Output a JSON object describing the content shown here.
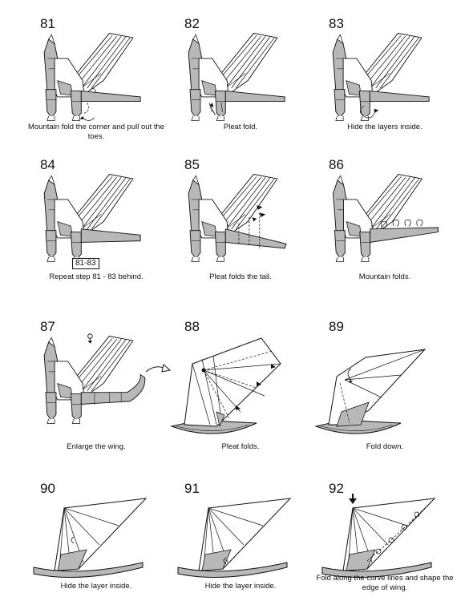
{
  "steps": [
    {
      "number": "81",
      "caption": "Mountain fold the corner and pull out the toes."
    },
    {
      "number": "82",
      "caption": "Pleat fold."
    },
    {
      "number": "83",
      "caption": "Hide the layers inside."
    },
    {
      "number": "84",
      "caption": "Repeat step 81 - 83 behind.",
      "ref": "81-83"
    },
    {
      "number": "85",
      "caption": "Pleat folds the tail."
    },
    {
      "number": "86",
      "caption": "Mountain folds."
    },
    {
      "number": "87",
      "caption": "Enlarge the wing."
    },
    {
      "number": "88",
      "caption": "Pleat folds."
    },
    {
      "number": "89",
      "caption": "Fold down."
    },
    {
      "number": "90",
      "caption": "Hide the layer inside."
    },
    {
      "number": "91",
      "caption": "Hide the layer inside."
    },
    {
      "number": "92",
      "caption": "Fold along the curve lines and shape the edge of wing."
    }
  ],
  "colors": {
    "paper_back": "#b8b8b8",
    "paper_front": "#ffffff",
    "line": "#111111"
  }
}
